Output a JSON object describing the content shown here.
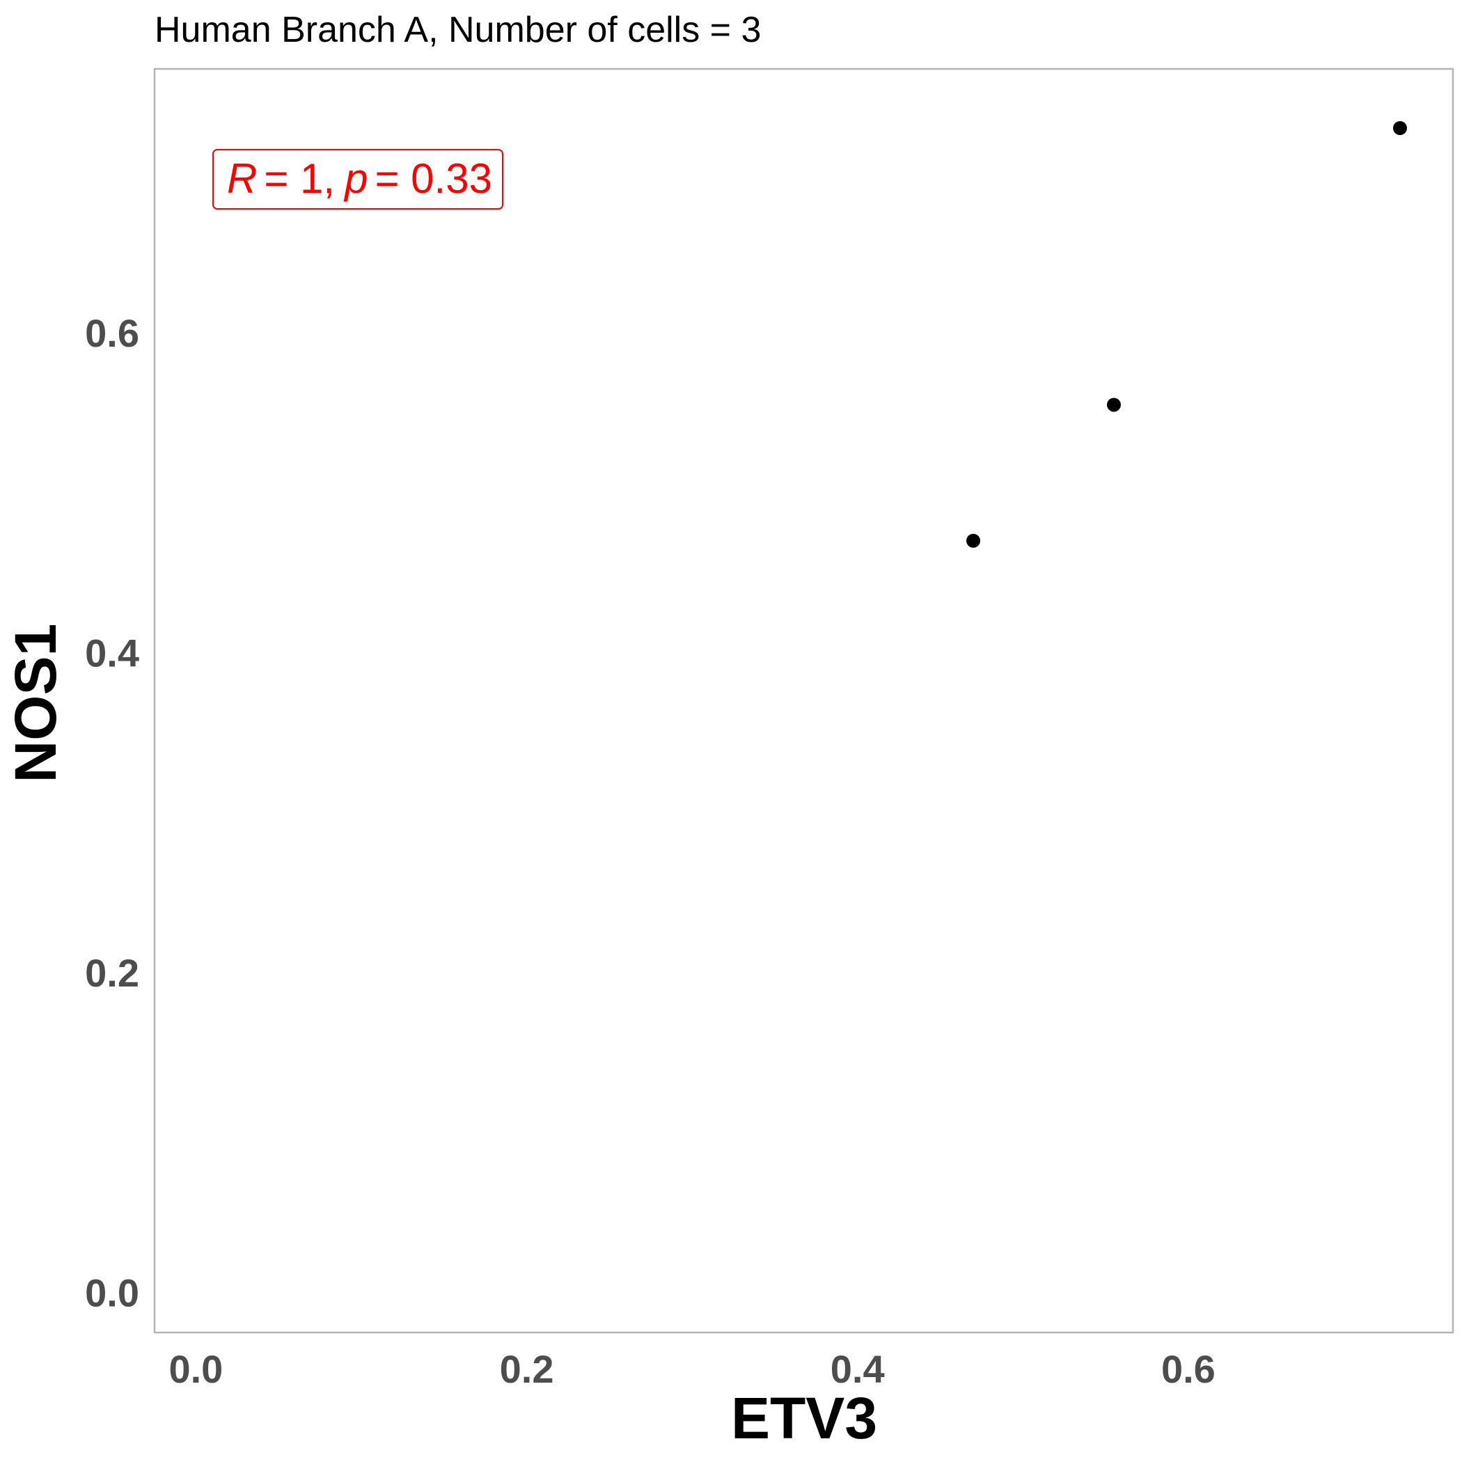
{
  "chart_data": {
    "type": "scatter",
    "title": "Human Branch A, Number of cells = 3",
    "xlabel": "ETV3",
    "ylabel": "NOS1",
    "xlim": [
      -0.025,
      0.76
    ],
    "ylim": [
      -0.025,
      0.765
    ],
    "x_ticks": [
      0.0,
      0.2,
      0.4,
      0.6
    ],
    "x_tick_labels": [
      "0.0",
      "0.2",
      "0.4",
      "0.6"
    ],
    "y_ticks": [
      0.0,
      0.2,
      0.4,
      0.6
    ],
    "y_tick_labels": [
      "0.0",
      "0.2",
      "0.4",
      "0.6"
    ],
    "grid": false,
    "points": [
      {
        "x": 0.47,
        "y": 0.47
      },
      {
        "x": 0.555,
        "y": 0.555
      },
      {
        "x": 0.728,
        "y": 0.728
      }
    ],
    "annotation": {
      "r_label": "R",
      "r_value": "= 1,",
      "p_label": "p",
      "p_value": "= 0.33",
      "color": "#ff0000"
    },
    "point_color": "#000000",
    "panel_border_color": "#b3b3b3"
  }
}
